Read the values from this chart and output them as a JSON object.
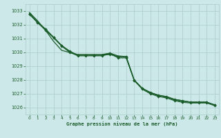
{
  "title": "Graphe pression niveau de la mer (hPa)",
  "bg_color": "#cde8e8",
  "grid_color": "#aacccc",
  "line_color": "#1a5c2a",
  "xlim": [
    -0.5,
    23.5
  ],
  "ylim": [
    1025.5,
    1033.5
  ],
  "yticks": [
    1026,
    1027,
    1028,
    1029,
    1030,
    1031,
    1032,
    1033
  ],
  "xticks": [
    0,
    1,
    2,
    3,
    4,
    5,
    6,
    7,
    8,
    9,
    10,
    11,
    12,
    13,
    14,
    15,
    16,
    17,
    18,
    19,
    20,
    21,
    22,
    23
  ],
  "series": [
    {
      "x": [
        0,
        1,
        2,
        3,
        4,
        5,
        6,
        7,
        8,
        9,
        10,
        11,
        12,
        13,
        14,
        15,
        16,
        17,
        18,
        19,
        20,
        21,
        22,
        23
      ],
      "y": [
        1032.8,
        1032.2,
        1031.7,
        1031.1,
        1030.5,
        1030.1,
        1029.8,
        1029.8,
        1029.8,
        1029.8,
        1029.85,
        1029.7,
        1029.7,
        1028.0,
        1027.4,
        1027.1,
        1026.9,
        1026.8,
        1026.6,
        1026.5,
        1026.4,
        1026.4,
        1026.4,
        1026.2
      ],
      "marker": "D",
      "markersize": 1.8,
      "linewidth": 0.9
    },
    {
      "x": [
        0,
        1,
        2,
        3,
        4,
        5,
        6,
        7,
        8,
        9,
        10,
        11,
        12,
        13,
        14,
        15,
        16,
        17,
        18,
        19,
        20,
        21,
        22,
        23
      ],
      "y": [
        1032.8,
        1032.2,
        1031.65,
        1031.1,
        1030.5,
        1030.05,
        1029.8,
        1029.8,
        1029.8,
        1029.8,
        1029.95,
        1029.65,
        1029.65,
        1028.0,
        1027.38,
        1027.05,
        1026.85,
        1026.75,
        1026.55,
        1026.42,
        1026.38,
        1026.38,
        1026.38,
        1026.18
      ],
      "marker": "D",
      "markersize": 1.8,
      "linewidth": 0.8
    },
    {
      "x": [
        0,
        1,
        2,
        3,
        4,
        5,
        6,
        7,
        8,
        9,
        10,
        11,
        12,
        13,
        14,
        15,
        16,
        17,
        18,
        19,
        20,
        21,
        22,
        23
      ],
      "y": [
        1032.75,
        1032.15,
        1031.6,
        1031.05,
        1030.45,
        1030.0,
        1029.75,
        1029.75,
        1029.75,
        1029.75,
        1029.9,
        1029.6,
        1029.6,
        1027.95,
        1027.33,
        1027.0,
        1026.8,
        1026.7,
        1026.5,
        1026.38,
        1026.33,
        1026.33,
        1026.33,
        1026.13
      ],
      "marker": "D",
      "markersize": 1.8,
      "linewidth": 0.7
    },
    {
      "x": [
        0,
        1,
        2,
        3,
        4,
        5,
        6,
        7,
        8,
        9,
        10,
        11,
        12,
        13,
        14,
        15,
        16,
        17,
        18,
        19,
        20,
        21,
        22,
        23
      ],
      "y": [
        1032.9,
        1032.3,
        1031.6,
        1030.8,
        1030.15,
        1030.0,
        1029.85,
        1029.85,
        1029.85,
        1029.85,
        1029.95,
        1029.75,
        1029.7,
        1028.0,
        1027.4,
        1027.1,
        1026.9,
        1026.8,
        1026.6,
        1026.5,
        1026.4,
        1026.4,
        1026.4,
        1026.2
      ],
      "marker": null,
      "markersize": 0,
      "linewidth": 0.9
    }
  ]
}
